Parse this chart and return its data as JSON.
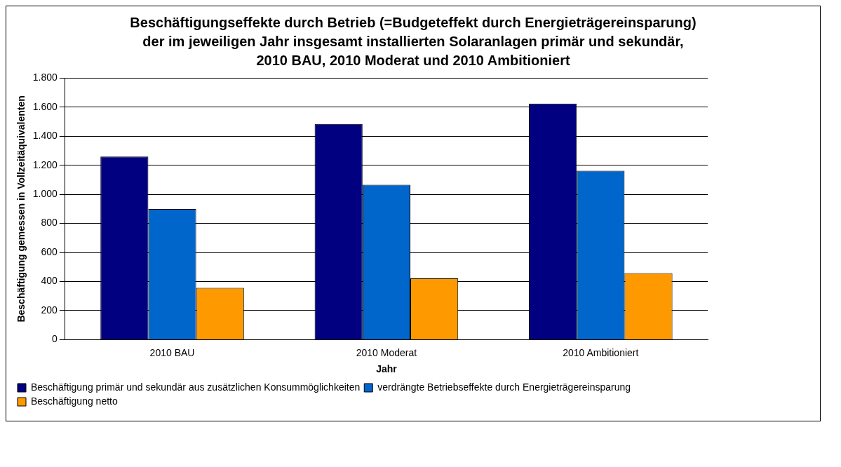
{
  "chart_data": {
    "type": "bar",
    "title": "Beschäftigungseffekte durch Betrieb (=Budgeteffekt durch Energieträgereinsparung) der im jeweiligen Jahr insgesamt installierten Solaranlagen primär und sekundär, 2010 BAU, 2010 Moderat und 2010 Ambitioniert",
    "xlabel": "Jahr",
    "ylabel": "Beschäftigung gemessen in Vollzeitäquivalenten",
    "categories": [
      "2010 BAU",
      "2010 Moderat",
      "2010 Ambitioniert"
    ],
    "series": [
      {
        "name": "Beschäftigung primär und sekundär aus zusätzlichen Konsummöglichkeiten",
        "color": "#000080",
        "values": [
          1260,
          1485,
          1624
        ]
      },
      {
        "name": "verdrängte Betriebseffekte durch Energieträgereinsparung",
        "color": "#0066cc",
        "values": [
          900,
          1066,
          1163
        ]
      },
      {
        "name": "Beschäftigung netto",
        "color": "#ff9900",
        "values": [
          357,
          422,
          458
        ]
      }
    ],
    "ylim": [
      0,
      1800
    ],
    "yticks": [
      0,
      {
        "value": 200,
        "label": "200"
      },
      {
        "value": 400,
        "label": "400"
      },
      {
        "value": 600,
        "label": "600"
      },
      {
        "value": 800,
        "label": "800"
      },
      {
        "value": 1000,
        "label": "1.000"
      },
      {
        "value": 1200,
        "label": "1.200"
      },
      {
        "value": 1400,
        "label": "1.400"
      },
      {
        "value": 1600,
        "label": "1.600"
      },
      {
        "value": 1800,
        "label": "1.800"
      }
    ],
    "grid": "y",
    "legend": "bottom"
  }
}
